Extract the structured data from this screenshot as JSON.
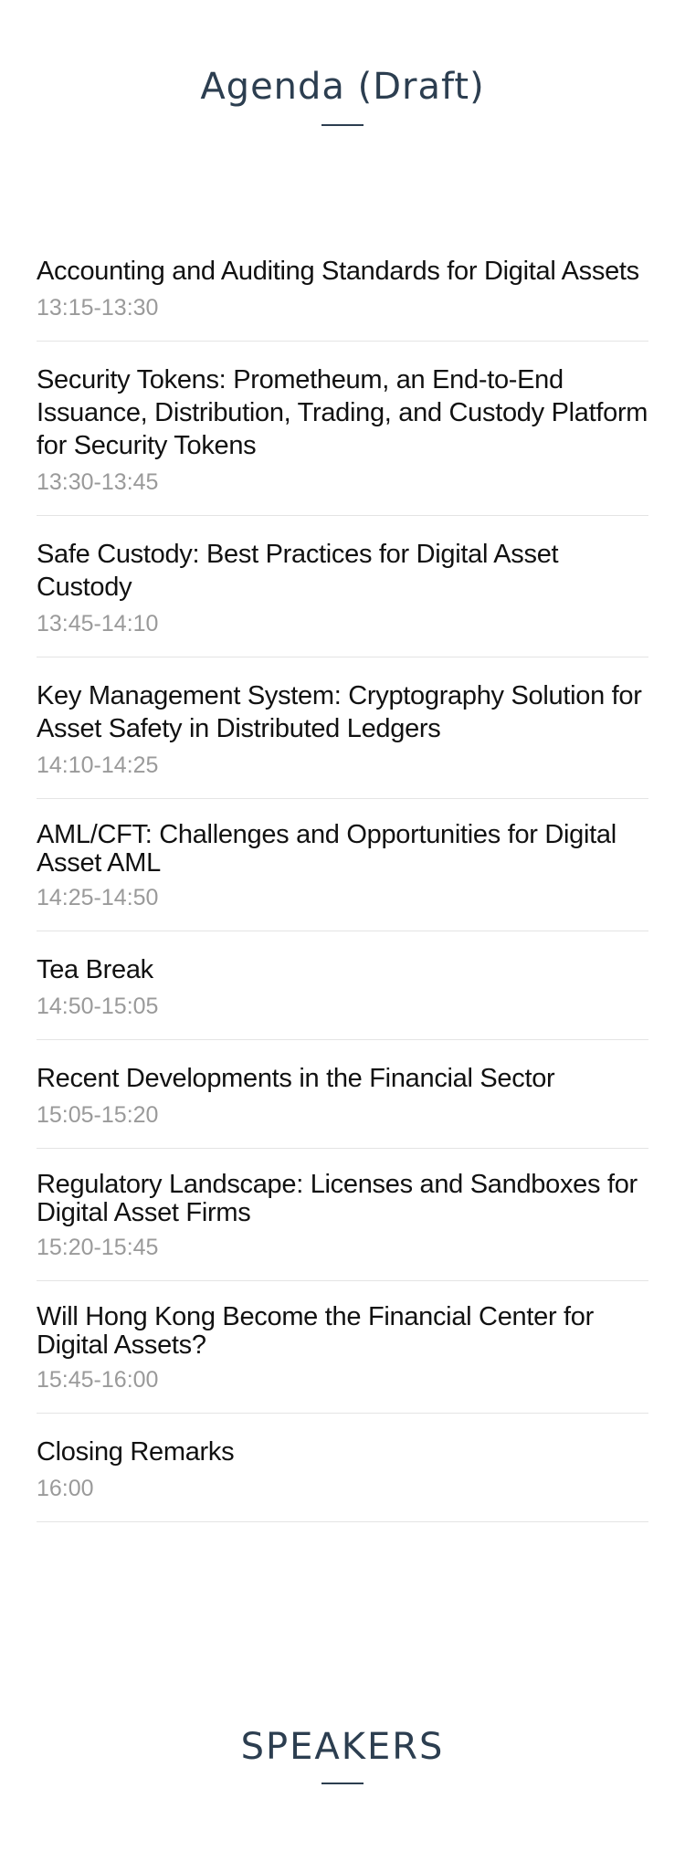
{
  "agenda": {
    "title": "Agenda (Draft)",
    "items": [
      {
        "title": "Accounting and Auditing Standards for Digital Assets",
        "time": "13:15-13:30"
      },
      {
        "title": "Security Tokens: Prometheum, an End-to-End Issuance, Distribution, Trading, and Custody Platform for Security Tokens",
        "time": "13:30-13:45"
      },
      {
        "title": "Safe Custody: Best Practices for Digital Asset Custody",
        "time": "13:45-14:10"
      },
      {
        "title": "Key Management System: Cryptography Solution for Asset Safety in Distributed Ledgers",
        "time": "14:10-14:25"
      },
      {
        "title": "AML/CFT: Challenges and Opportunities for Digital Asset AML",
        "time": "14:25-14:50"
      },
      {
        "title": "Tea Break",
        "time": "14:50-15:05"
      },
      {
        "title": "Recent Developments in the Financial Sector",
        "time": "15:05-15:20"
      },
      {
        "title": "Regulatory Landscape: Licenses and Sandboxes for Digital Asset Firms",
        "time": "15:20-15:45"
      },
      {
        "title": "Will Hong Kong Become the Financial Center for Digital Assets?",
        "time": "15:45-16:00"
      },
      {
        "title": "Closing Remarks",
        "time": "16:00"
      }
    ]
  },
  "speakers": {
    "title": "SPEAKERS"
  }
}
